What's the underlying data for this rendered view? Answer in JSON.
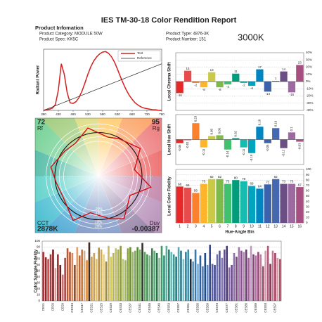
{
  "header": {
    "title": "IES TM-30-18 Color Rendition Report",
    "section": "Product Infomation",
    "category": "Product Category: MODULE 50W",
    "spec": "Product Spec: KK5C",
    "product_type": "Product Type: 4876-3K",
    "number": "Product Number: 151",
    "cct_badge": "3000K"
  },
  "chart_data": [
    {
      "type": "line",
      "ylabel": "Radiant Power",
      "x": [
        380,
        390,
        400,
        410,
        420,
        430,
        440,
        450,
        460,
        470,
        480,
        490,
        500,
        510,
        520,
        530,
        540,
        550,
        560,
        570,
        580,
        590,
        600,
        610,
        620,
        630,
        640,
        650,
        660,
        670,
        680,
        690,
        700,
        710,
        720,
        730,
        740,
        750,
        760,
        770,
        780
      ],
      "xlim": [
        380,
        780
      ],
      "xticks": [
        380,
        430,
        480,
        530,
        580,
        630,
        680,
        730,
        780
      ],
      "ylim": [
        0,
        1.05
      ],
      "legend": "upper right",
      "series": [
        {
          "name": "Test",
          "color": "#d42020",
          "values": [
            0,
            0.01,
            0.02,
            0.04,
            0.1,
            0.35,
            0.8,
            0.62,
            0.3,
            0.13,
            0.12,
            0.15,
            0.22,
            0.33,
            0.47,
            0.62,
            0.75,
            0.85,
            0.92,
            0.97,
            1.0,
            1.01,
            0.98,
            0.92,
            0.83,
            0.71,
            0.58,
            0.46,
            0.35,
            0.26,
            0.19,
            0.13,
            0.09,
            0.06,
            0.04,
            0.03,
            0.02,
            0.01,
            0.01,
            0,
            0
          ]
        },
        {
          "name": "Reference",
          "color": "#222222",
          "values": [
            0,
            0.02,
            0.04,
            0.06,
            0.08,
            0.1,
            0.12,
            0.14,
            0.16,
            0.18,
            0.2,
            0.22,
            0.24,
            0.26,
            0.28,
            0.3,
            0.32,
            0.34,
            0.36,
            0.38,
            0.4,
            0.42,
            0.44,
            0.46,
            0.48,
            0.5,
            0.52,
            0.54,
            0.56,
            0.58,
            0.6,
            0.62,
            0.64,
            0.66,
            0.68,
            0.7,
            0.72,
            0.74,
            0.76,
            0.78,
            0.8
          ]
        }
      ]
    },
    {
      "type": "bar",
      "ylabel": "Local Chroma Shift",
      "values": [
        -16,
        15,
        -2,
        -8,
        13,
        -8,
        -4,
        11,
        -2,
        -6,
        17,
        -14,
        1,
        14,
        -15,
        23
      ],
      "colors": [
        "#e62828",
        "#e74b4b",
        "#fb812e",
        "#ffb529",
        "#cbca46",
        "#7eb94c",
        "#41c06d",
        "#009c7c",
        "#16bcb0",
        "#00a4bf",
        "#0085c3",
        "#3b62aa",
        "#4568ae",
        "#6a4e85",
        "#9d69a1",
        "#a74f81"
      ],
      "ylim": [
        -40,
        40
      ],
      "grid": true,
      "yticks": [
        {
          "value": -40,
          "label": "-40%"
        },
        {
          "value": -30,
          "label": "-30%"
        },
        {
          "value": -20,
          "label": "-20%"
        },
        {
          "value": -10,
          "label": "-10%"
        },
        {
          "value": 0,
          "label": "0%"
        },
        {
          "value": 10,
          "label": "10%"
        },
        {
          "value": 20,
          "label": "20%"
        },
        {
          "value": 30,
          "label": "30%"
        },
        {
          "value": 40,
          "label": "40%"
        }
      ]
    },
    {
      "type": "bar",
      "ylabel": "Local Hue Shift",
      "rotated_labels": true,
      "values": [
        -0.05,
        -0.01,
        0.23,
        -0.11,
        0.05,
        0.06,
        -0.14,
        0.02,
        -0.11,
        -0.19,
        0.18,
        -0.05,
        0.16,
        -0.12,
        0.1,
        -0.03
      ],
      "colors": [
        "#e62828",
        "#e74b4b",
        "#fb812e",
        "#ffb529",
        "#cbca46",
        "#7eb94c",
        "#41c06d",
        "#009c7c",
        "#16bcb0",
        "#00a4bf",
        "#0085c3",
        "#3b62aa",
        "#4568ae",
        "#6a4e85",
        "#9d69a1",
        "#a74f81"
      ],
      "ylim": [
        -0.35,
        0.35
      ]
    },
    {
      "type": "bar",
      "ylabel": "Local Color Fidelity",
      "xlabel": "Hue-Angle Bin",
      "categories": [
        "1",
        "2",
        "3",
        "4",
        "5",
        "6",
        "7",
        "8",
        "9",
        "10",
        "11",
        "12",
        "13",
        "14",
        "15",
        "16"
      ],
      "values": [
        68,
        66,
        56,
        73,
        82,
        82,
        73,
        80,
        78,
        69,
        64,
        72,
        82,
        73,
        73,
        67
      ],
      "colors": [
        "#e62828",
        "#e74b4b",
        "#fb812e",
        "#ffb529",
        "#cbca46",
        "#7eb94c",
        "#41c06d",
        "#009c7c",
        "#16bcb0",
        "#00a4bf",
        "#0085c3",
        "#3b62aa",
        "#4568ae",
        "#6a4e85",
        "#9d69a1",
        "#a74f81"
      ],
      "ylim": [
        0,
        100
      ],
      "yticks": [
        0,
        10,
        20,
        30,
        40,
        50,
        60,
        70,
        80,
        90,
        100
      ],
      "grid": true
    },
    {
      "type": "vector",
      "rf": 72,
      "rf_label": "Rf",
      "rg": 95,
      "rg_label": "Rg",
      "cct_label": "CCT",
      "cct": "2878K",
      "duv_label": "Duv",
      "duv": -0.00387,
      "ring_labels": [
        "-20%",
        "-10%",
        "10%",
        "20%"
      ]
    },
    {
      "type": "bar",
      "ylabel": "Color Sample Fidelity",
      "rotated_categories": true,
      "categories": [
        "CES1",
        null,
        null,
        null,
        "CES5",
        null,
        null,
        null,
        "CES9",
        null,
        null,
        null,
        "CES13",
        null,
        null,
        null,
        "CES17",
        null,
        null,
        null,
        "CES21",
        null,
        null,
        null,
        "CES25",
        null,
        null,
        null,
        "CES29",
        null,
        null,
        null,
        "CES33",
        null,
        null,
        null,
        "CES37",
        null,
        null,
        null,
        "CES41",
        null,
        null,
        null,
        "CES45",
        null,
        null,
        null,
        "CES49",
        null,
        null,
        null,
        "CES53",
        null,
        null,
        null,
        "CES57",
        null,
        null,
        null,
        "CES61",
        null,
        null,
        null,
        "CES65",
        null,
        null,
        null,
        "CES69",
        null,
        null,
        null,
        "CES73",
        null,
        null,
        null,
        "CES77",
        null,
        null,
        null,
        "CES81",
        null,
        null,
        null,
        "CES85",
        null,
        null,
        null,
        "CES89",
        null,
        null,
        null,
        "CES93",
        null,
        null,
        null,
        "CES97",
        null,
        null
      ],
      "values": [
        82,
        73,
        70,
        78,
        86,
        55,
        78,
        60,
        44,
        72,
        88,
        82,
        80,
        60,
        90,
        76,
        86,
        84,
        68,
        98,
        74,
        80,
        70,
        89,
        86,
        78,
        66,
        92,
        74,
        80,
        88,
        86,
        92,
        70,
        68,
        88,
        90,
        82,
        84,
        90,
        86,
        97,
        82,
        78,
        76,
        88,
        84,
        80,
        72,
        92,
        76,
        92,
        86,
        82,
        78,
        74,
        90,
        84,
        70,
        82,
        86,
        70,
        66,
        86,
        62,
        76,
        58,
        80,
        60,
        94,
        62,
        60,
        78,
        84,
        72,
        86,
        92,
        56,
        60,
        80,
        74,
        90,
        84,
        82,
        86,
        72,
        92,
        78,
        76,
        82,
        78,
        58,
        84,
        92,
        62,
        84,
        80,
        72,
        70
      ],
      "colors": [
        "#b0303a",
        "#8c2a2a",
        "#c94a4a",
        "#a33b3b",
        "#7a1f24",
        "#d7a0a0",
        "#9e3535",
        "#6b1e1e",
        "#c86e6e",
        "#b24444",
        "#c4552d",
        "#a65a3a",
        "#d98a5c",
        "#8f4a2a",
        "#e0a070",
        "#b86a3c",
        "#cc7a3a",
        "#d6b08a",
        "#e08a30",
        "#3a2a20",
        "#d8a040",
        "#c8a060",
        "#e0c070",
        "#b89040",
        "#d0b050",
        "#e8d088",
        "#a08840",
        "#c8b860",
        "#d8c850",
        "#b8b070",
        "#c0c060",
        "#a8b048",
        "#909838",
        "#b8c878",
        "#a0b858",
        "#88a040",
        "#6a8a30",
        "#98b868",
        "#80a858",
        "#5a8838",
        "#70b060",
        "#2a3a28",
        "#5aa060",
        "#48905a",
        "#78b880",
        "#3a8050",
        "#60a878",
        "#2a7048",
        "#88c098",
        "#409868",
        "#30907a",
        "#58b0a0",
        "#208878",
        "#70b8b0",
        "#409898",
        "#18807e",
        "#58a8b0",
        "#307888",
        "#80c0c8",
        "#28889a",
        "#4090b0",
        "#1a2a3a",
        "#5898c0",
        "#3878a8",
        "#7aa8d0",
        "#2860a0",
        "#5080b8",
        "#1e4888",
        "#6888c0",
        "#304890",
        "#5860a8",
        "#404890",
        "#7070b0",
        "#585898",
        "#8078b8",
        "#605090",
        "#483878",
        "#8868a8",
        "#6a4a8a",
        "#9070a8",
        "#7a4880",
        "#a078a8",
        "#8a5090",
        "#b088b0",
        "#6a3a70",
        "#a06098",
        "#c098c0",
        "#884078",
        "#b070a0",
        "#984878",
        "#c08098",
        "#a04868",
        "#d0a0b0",
        "#b05878",
        "#8a3050",
        "#c87890",
        "#a84060",
        "#d898a8",
        "#b85068"
      ],
      "ylim": [
        0,
        100
      ],
      "yticks": [
        0,
        10,
        20,
        30,
        40,
        50,
        60,
        70,
        80,
        90,
        100
      ],
      "grid": true
    }
  ]
}
